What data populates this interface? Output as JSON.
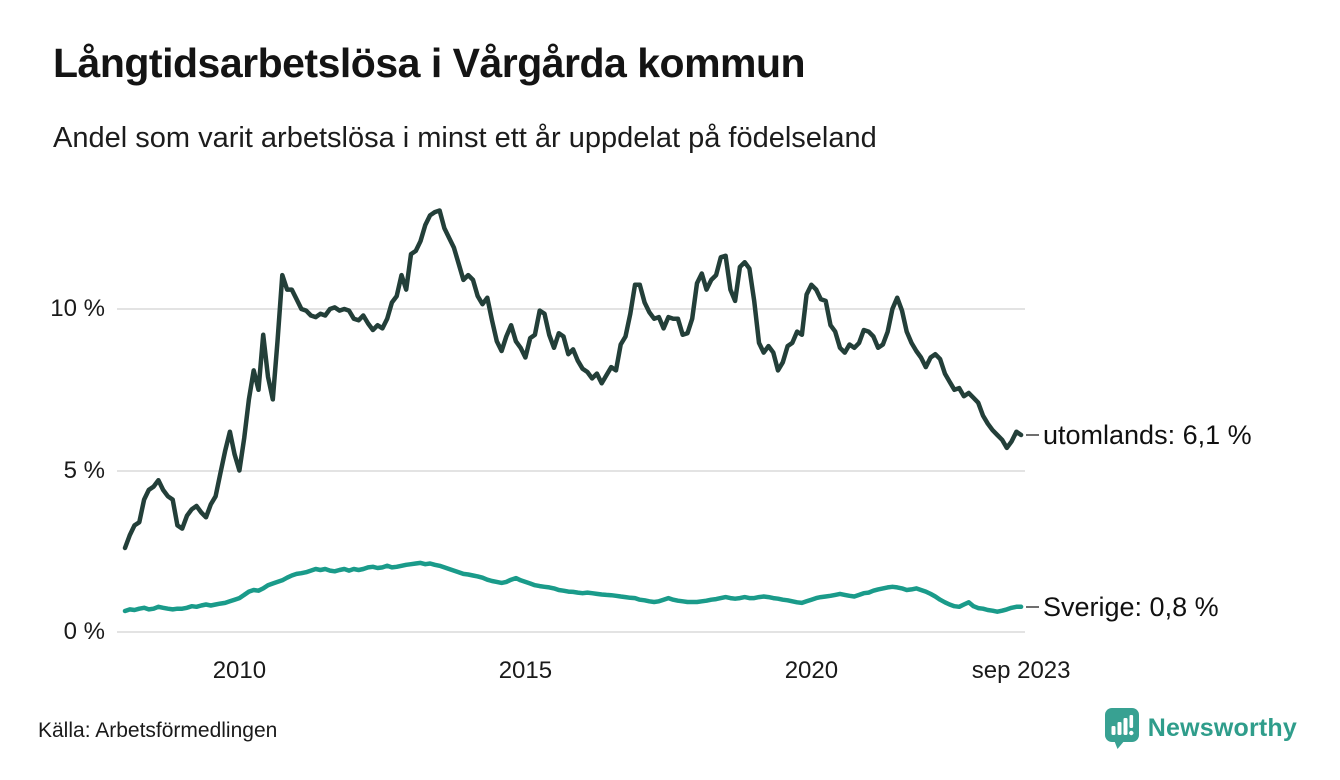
{
  "header": {
    "title": "Långtidsarbetslösa i Vårgårda kommun",
    "subtitle": "Andel som varit arbetslösa i minst ett år uppdelat på födelseland"
  },
  "footer": {
    "source": "Källa: Arbetsförmedlingen",
    "brand": {
      "name": "Newsworthy",
      "icon": "newsworthy-speech-bubble-bar-chart-icon",
      "icon_color": "#38a192",
      "text_color": "#2f9d8b"
    }
  },
  "chart_data": {
    "type": "line",
    "title": "Långtidsarbetslösa i Vårgårda kommun",
    "subtitle": "Andel som varit arbetslösa i minst ett år uppdelat på födelseland",
    "unit": "%",
    "grid": "horizontal",
    "legend_position": "line-end-labels-right",
    "x_range": [
      2008.0,
      2023.6667
    ],
    "ylim": [
      0,
      13.5
    ],
    "x_start": 2008.0,
    "x_step_years": 0.083333,
    "x_ticks": [
      {
        "year": 2010,
        "label": "2010"
      },
      {
        "year": 2015,
        "label": "2015"
      },
      {
        "year": 2020,
        "label": "2020"
      },
      {
        "year": 2023.6667,
        "label": "sep 2023"
      }
    ],
    "y_ticks": [
      {
        "value": 10,
        "label": "10 %"
      },
      {
        "value": 5,
        "label": "5 %"
      },
      {
        "value": 0,
        "label": "0 %"
      }
    ],
    "series": [
      {
        "name": "utomlands",
        "end_label": "utomlands: 6,1 %",
        "end_value": 6.1,
        "color": "#233f39",
        "values": [
          2.6,
          3.0,
          3.3,
          3.4,
          4.1,
          4.4,
          4.5,
          4.7,
          4.4,
          4.2,
          4.1,
          3.3,
          3.2,
          3.6,
          3.8,
          3.9,
          3.7,
          3.55,
          3.95,
          4.2,
          4.9,
          5.6,
          6.2,
          5.5,
          5.0,
          6.0,
          7.2,
          8.1,
          7.5,
          9.2,
          7.9,
          7.2,
          9.0,
          11.05,
          10.6,
          10.6,
          10.3,
          10.0,
          9.95,
          9.8,
          9.75,
          9.85,
          9.8,
          10.0,
          10.05,
          9.95,
          10.0,
          9.95,
          9.7,
          9.65,
          9.8,
          9.55,
          9.35,
          9.5,
          9.4,
          9.7,
          10.2,
          10.4,
          11.05,
          10.6,
          11.7,
          11.8,
          12.1,
          12.6,
          12.9,
          13.0,
          13.05,
          12.5,
          12.2,
          11.9,
          11.4,
          10.9,
          11.05,
          10.9,
          10.4,
          10.15,
          10.35,
          9.65,
          9.0,
          8.7,
          9.15,
          9.5,
          9.0,
          8.8,
          8.5,
          9.1,
          9.2,
          9.95,
          9.85,
          9.2,
          8.8,
          9.25,
          9.15,
          8.6,
          8.75,
          8.4,
          8.15,
          8.05,
          7.85,
          8.0,
          7.7,
          7.95,
          8.2,
          8.1,
          8.9,
          9.15,
          9.85,
          10.75,
          10.75,
          10.2,
          9.9,
          9.7,
          9.75,
          9.4,
          9.75,
          9.7,
          9.7,
          9.2,
          9.25,
          9.7,
          10.8,
          11.1,
          10.6,
          10.9,
          11.05,
          11.6,
          11.65,
          10.6,
          10.25,
          11.3,
          11.45,
          11.25,
          10.25,
          8.95,
          8.65,
          8.85,
          8.65,
          8.1,
          8.35,
          8.85,
          8.95,
          9.3,
          9.2,
          10.45,
          10.75,
          10.6,
          10.3,
          10.25,
          9.5,
          9.3,
          8.8,
          8.65,
          8.9,
          8.8,
          8.95,
          9.35,
          9.3,
          9.15,
          8.8,
          8.9,
          9.3,
          10.0,
          10.35,
          9.95,
          9.3,
          8.95,
          8.7,
          8.5,
          8.2,
          8.5,
          8.6,
          8.45,
          8.0,
          7.75,
          7.5,
          7.55,
          7.3,
          7.4,
          7.25,
          7.1,
          6.7,
          6.45,
          6.25,
          6.1,
          5.95,
          5.7,
          5.9,
          6.2,
          6.1
        ]
      },
      {
        "name": "Sverige",
        "end_label": "Sverige: 0,8 %",
        "end_value": 0.8,
        "color": "#1a9b8a",
        "values": [
          0.65,
          0.7,
          0.68,
          0.72,
          0.75,
          0.7,
          0.72,
          0.78,
          0.75,
          0.72,
          0.7,
          0.72,
          0.72,
          0.75,
          0.8,
          0.78,
          0.82,
          0.85,
          0.82,
          0.85,
          0.88,
          0.9,
          0.95,
          1.0,
          1.05,
          1.15,
          1.25,
          1.3,
          1.28,
          1.35,
          1.45,
          1.5,
          1.55,
          1.6,
          1.68,
          1.75,
          1.8,
          1.82,
          1.85,
          1.9,
          1.95,
          1.92,
          1.95,
          1.9,
          1.88,
          1.92,
          1.95,
          1.9,
          1.95,
          1.92,
          1.95,
          2.0,
          2.02,
          1.98,
          2.0,
          2.05,
          2.0,
          2.02,
          2.05,
          2.08,
          2.1,
          2.12,
          2.14,
          2.1,
          2.12,
          2.08,
          2.05,
          2.0,
          1.95,
          1.9,
          1.85,
          1.8,
          1.78,
          1.75,
          1.72,
          1.68,
          1.62,
          1.58,
          1.55,
          1.52,
          1.55,
          1.62,
          1.67,
          1.6,
          1.55,
          1.5,
          1.45,
          1.42,
          1.4,
          1.38,
          1.35,
          1.3,
          1.28,
          1.25,
          1.24,
          1.22,
          1.2,
          1.22,
          1.2,
          1.18,
          1.16,
          1.15,
          1.14,
          1.12,
          1.1,
          1.08,
          1.06,
          1.05,
          1.0,
          0.98,
          0.95,
          0.93,
          0.95,
          1.0,
          1.05,
          1.0,
          0.97,
          0.95,
          0.93,
          0.93,
          0.93,
          0.95,
          0.97,
          1.0,
          1.02,
          1.05,
          1.08,
          1.05,
          1.03,
          1.05,
          1.08,
          1.05,
          1.05,
          1.08,
          1.1,
          1.08,
          1.05,
          1.03,
          1.0,
          0.98,
          0.95,
          0.92,
          0.9,
          0.95,
          1.0,
          1.05,
          1.08,
          1.1,
          1.12,
          1.15,
          1.18,
          1.15,
          1.12,
          1.1,
          1.15,
          1.2,
          1.22,
          1.28,
          1.32,
          1.35,
          1.38,
          1.4,
          1.38,
          1.35,
          1.3,
          1.32,
          1.35,
          1.3,
          1.25,
          1.18,
          1.1,
          1.0,
          0.92,
          0.85,
          0.8,
          0.78,
          0.85,
          0.92,
          0.8,
          0.74,
          0.72,
          0.68,
          0.66,
          0.63,
          0.66,
          0.7,
          0.75,
          0.78,
          0.78
        ]
      }
    ]
  }
}
